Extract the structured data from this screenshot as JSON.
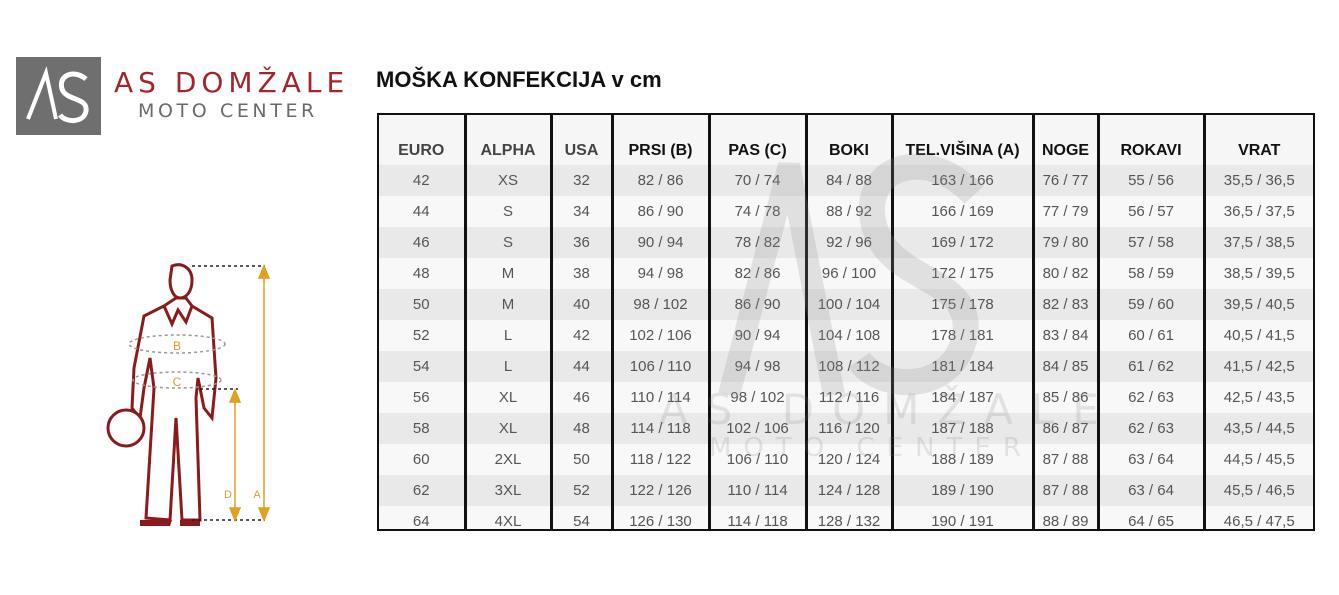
{
  "logo": {
    "brand": "AS DOMŽALE",
    "sub": "MOTO CENTER",
    "mark": "AS",
    "brand_color": "#a3262c",
    "box_color": "#6f6f6f"
  },
  "title": "MOŠKA KONFEKCIJA v cm",
  "figure": {
    "labels": {
      "chest": "B",
      "waist": "C",
      "legs": "D",
      "height": "A"
    },
    "figure_color": "#8b1a1a",
    "arrow_color": "#e0a020"
  },
  "watermark": {
    "brand": "AS DOMŽALE",
    "sub": "MOTO CENTER"
  },
  "table": {
    "headers": [
      "EURO",
      "ALPHA",
      "USA",
      "PRSI (B)",
      "PAS (C)",
      "BOKI",
      "TEL.VIŠINA (A)",
      "NOGE",
      "ROKAVI",
      "VRAT"
    ],
    "rows": [
      [
        "42",
        "XS",
        "32",
        "82 / 86",
        "70 / 74",
        "84 / 88",
        "163 / 166",
        "76 / 77",
        "55 / 56",
        "35,5 / 36,5"
      ],
      [
        "44",
        "S",
        "34",
        "86 / 90",
        "74 / 78",
        "88 / 92",
        "166 / 169",
        "77 / 79",
        "56 / 57",
        "36,5 / 37,5"
      ],
      [
        "46",
        "S",
        "36",
        "90 / 94",
        "78 / 82",
        "92 / 96",
        "169 / 172",
        "79 / 80",
        "57 / 58",
        "37,5 / 38,5"
      ],
      [
        "48",
        "M",
        "38",
        "94 / 98",
        "82 / 86",
        "96 / 100",
        "172 / 175",
        "80 / 82",
        "58 / 59",
        "38,5 / 39,5"
      ],
      [
        "50",
        "M",
        "40",
        "98 / 102",
        "86 / 90",
        "100 / 104",
        "175 / 178",
        "82 / 83",
        "59 / 60",
        "39,5 / 40,5"
      ],
      [
        "52",
        "L",
        "42",
        "102 / 106",
        "90 / 94",
        "104 / 108",
        "178 / 181",
        "83 / 84",
        "60 / 61",
        "40,5 / 41,5"
      ],
      [
        "54",
        "L",
        "44",
        "106 / 110",
        "94 / 98",
        "108 / 112",
        "181 / 184",
        "84 / 85",
        "61 / 62",
        "41,5 / 42,5"
      ],
      [
        "56",
        "XL",
        "46",
        "110 / 114",
        "98 / 102",
        "112 / 116",
        "184 / 187",
        "85 / 86",
        "62 / 63",
        "42,5 / 43,5"
      ],
      [
        "58",
        "XL",
        "48",
        "114 / 118",
        "102 / 106",
        "116 / 120",
        "187 / 188",
        "86 / 87",
        "62 / 63",
        "43,5 / 44,5"
      ],
      [
        "60",
        "2XL",
        "50",
        "118 / 122",
        "106 / 110",
        "120 / 124",
        "188 / 189",
        "87 / 88",
        "63 / 64",
        "44,5 / 45,5"
      ],
      [
        "62",
        "3XL",
        "52",
        "122 / 126",
        "110 / 114",
        "124 / 128",
        "189 / 190",
        "87 / 88",
        "63 / 64",
        "45,5 / 46,5"
      ],
      [
        "64",
        "4XL",
        "54",
        "126 / 130",
        "114 / 118",
        "128 / 132",
        "190 / 191",
        "88 / 89",
        "64 / 65",
        "46,5 / 47,5"
      ]
    ]
  }
}
